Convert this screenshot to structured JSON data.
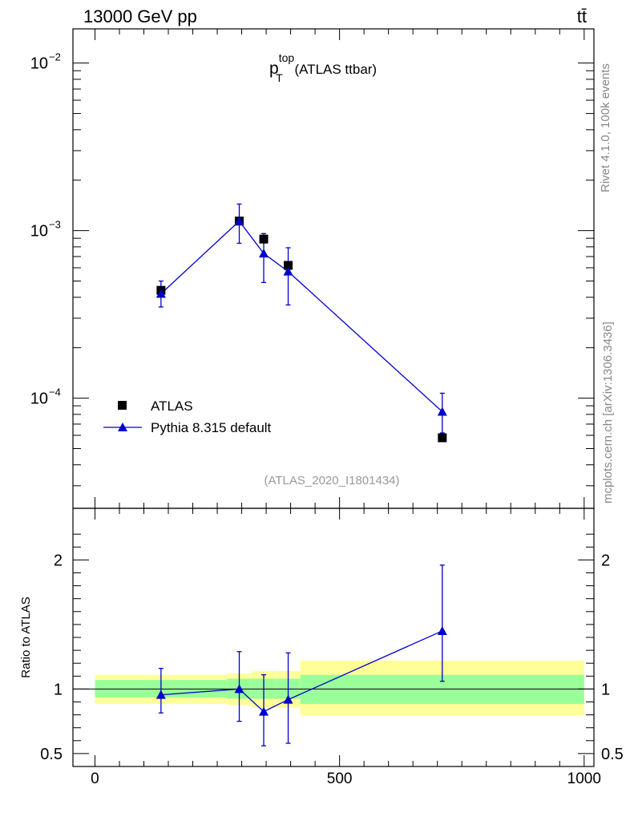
{
  "header": {
    "left": "13000 GeV pp",
    "right": "tt̄"
  },
  "side_labels": {
    "rivet": "Rivet 4.1.0,  100k events",
    "mcplots": "mcplots.cern.ch [arXiv:1306.3436]"
  },
  "chart_data": {
    "type": "scatter",
    "title": {
      "main": "p",
      "sup": "top",
      "sub": "T",
      "suffix": " (ATLAS ttbar)"
    },
    "analysis_id": "(ATLAS_2020_I1801434)",
    "ratio_ylabel": "Ratio to ATLAS",
    "main_panel": {
      "yscale": "log",
      "ylim": [
        2.2e-05,
        0.016
      ],
      "ytick_labels": [
        {
          "value": 0.01,
          "base": "10",
          "exp": "−2"
        },
        {
          "value": 0.001,
          "base": "10",
          "exp": "−3"
        },
        {
          "value": 0.0001,
          "base": "10",
          "exp": "−4"
        }
      ]
    },
    "ratio_panel": {
      "ylim": [
        0.4,
        2.4
      ],
      "yticks": [
        0.5,
        1,
        2
      ],
      "ytick_labels": [
        "0.5",
        "1",
        "2"
      ]
    },
    "xlim": [
      -45,
      1020
    ],
    "xticks": [
      0,
      500,
      1000
    ],
    "xtick_labels": [
      "0",
      "500",
      "1000"
    ],
    "series": [
      {
        "name": "ATLAS",
        "marker": "square",
        "color": "#000000",
        "x": [
          135,
          295,
          345,
          395,
          710
        ],
        "y": [
          0.00044,
          0.00114,
          0.00089,
          0.00062,
          5.8e-05
        ]
      },
      {
        "name": "Pythia 8.315 default",
        "marker": "triangle",
        "color": "#0000cc",
        "x": [
          135,
          295,
          345,
          395,
          710
        ],
        "y": [
          0.00042,
          0.00114,
          0.00073,
          0.00057,
          8.3e-05
        ],
        "yerr_low": [
          0.00035,
          0.00084,
          0.00049,
          0.00036,
          6.2e-05
        ],
        "yerr_high": [
          0.0005,
          0.00144,
          0.00096,
          0.00079,
          0.000107
        ],
        "ratio": [
          0.955,
          1.0,
          0.825,
          0.918,
          1.45
        ],
        "ratio_low": [
          0.815,
          0.75,
          0.56,
          0.58,
          1.06
        ],
        "ratio_high": [
          1.16,
          1.29,
          1.11,
          1.28,
          1.96
        ]
      }
    ],
    "uncertainty_bands": {
      "x_edges": [
        0,
        270,
        320,
        370,
        420,
        1000
      ],
      "inner_low": [
        0.935,
        0.925,
        0.925,
        0.925,
        0.885
      ],
      "inner_high": [
        1.07,
        1.08,
        1.08,
        1.08,
        1.11
      ],
      "outer_low": [
        0.885,
        0.875,
        0.855,
        0.855,
        0.795
      ],
      "outer_high": [
        1.11,
        1.12,
        1.14,
        1.14,
        1.22
      ],
      "inner_color": "#99ff99",
      "outer_color": "#ffff99"
    }
  }
}
